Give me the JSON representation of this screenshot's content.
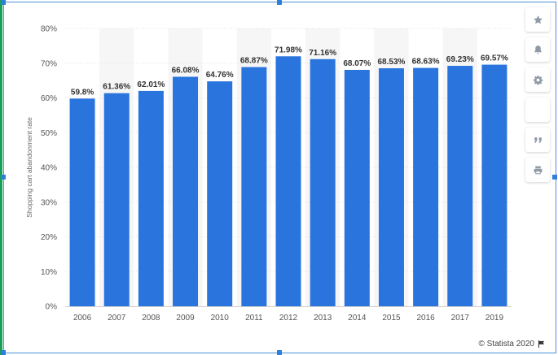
{
  "chart_data": {
    "type": "bar",
    "categories": [
      "2006",
      "2007",
      "2008",
      "2009",
      "2010",
      "2011",
      "2012",
      "2013",
      "2014",
      "2015",
      "2016",
      "2017",
      "2019"
    ],
    "values": [
      59.8,
      61.36,
      62.01,
      66.08,
      64.76,
      68.87,
      71.98,
      71.16,
      68.07,
      68.53,
      68.63,
      69.23,
      69.57
    ],
    "data_labels": [
      "59.8%",
      "61.36%",
      "62.01%",
      "66.08%",
      "64.76%",
      "68.87%",
      "71.98%",
      "71.16%",
      "68.07%",
      "68.53%",
      "68.63%",
      "69.23%",
      "69.57%"
    ],
    "y_ticks": [
      0,
      10,
      20,
      30,
      40,
      50,
      60,
      70,
      80
    ],
    "y_tick_labels": [
      "0%",
      "10%",
      "20%",
      "30%",
      "40%",
      "50%",
      "60%",
      "70%",
      "80%"
    ],
    "ylabel": "Shopping cart abandonment rate",
    "xlabel": "",
    "ylim": [
      0,
      80
    ],
    "bar_color": "#2a74de",
    "grid": true,
    "alternating_column_shading": true
  },
  "toolbar": {
    "buttons": [
      {
        "name": "star-icon"
      },
      {
        "name": "bell-icon"
      },
      {
        "name": "gear-icon"
      },
      {
        "name": "share-icon"
      },
      {
        "name": "quote-icon"
      },
      {
        "name": "print-icon"
      }
    ]
  },
  "credit": {
    "text": "© Statista 2020",
    "icon": "flag-icon"
  }
}
